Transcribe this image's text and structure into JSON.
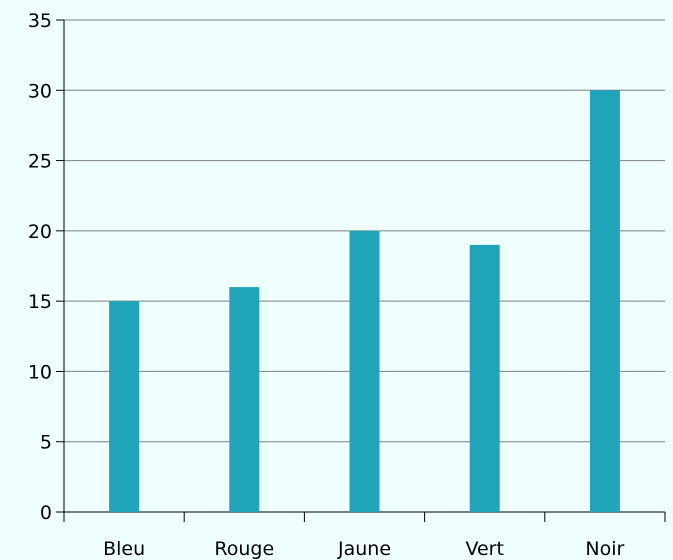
{
  "chart_data": {
    "type": "bar",
    "categories": [
      "Bleu",
      "Rouge",
      "Jaune",
      "Vert",
      "Noir"
    ],
    "values": [
      15,
      16,
      20,
      19,
      30
    ],
    "color": "#1fa4b9",
    "ylim": [
      0,
      35
    ],
    "yticks": [
      0,
      5,
      10,
      15,
      20,
      25,
      30,
      35
    ],
    "grid": true
  }
}
